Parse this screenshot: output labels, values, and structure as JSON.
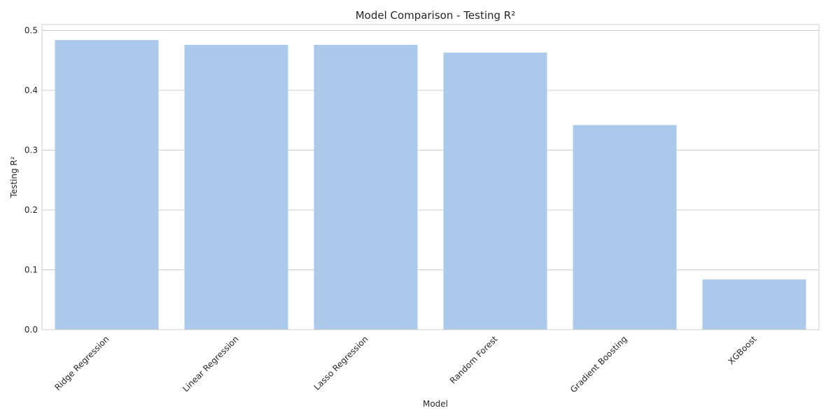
{
  "chart_data": {
    "type": "bar",
    "title": "Model Comparison - Testing R²",
    "xlabel": "Model",
    "ylabel": "Testing R²",
    "categories": [
      "Ridge Regression",
      "Linear Regression",
      "Lasso Regression",
      "Random Forest",
      "Gradient Boosting",
      "XGBoost"
    ],
    "values": [
      0.484,
      0.476,
      0.476,
      0.463,
      0.342,
      0.084
    ],
    "ylim": [
      0,
      0.51
    ],
    "yticks": [
      "0.0",
      "0.1",
      "0.2",
      "0.3",
      "0.4",
      "0.5"
    ],
    "grid": true,
    "bar_color": "#abc9eb",
    "grid_color": "#cccccc"
  }
}
